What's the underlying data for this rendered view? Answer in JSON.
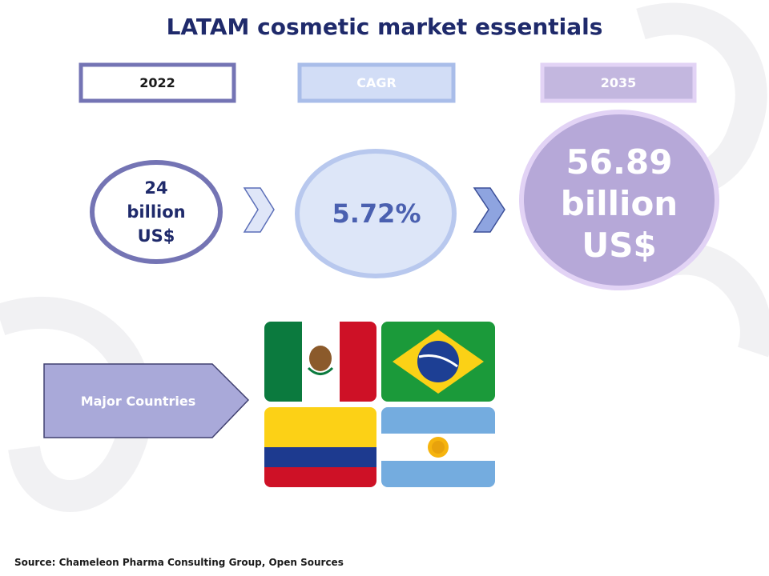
{
  "title": "LATAM cosmetic market essentials",
  "headers": [
    "2022",
    "CAGR",
    "2035"
  ],
  "values": [
    "24 billion US$",
    "5.72%",
    "56.89 billion US$"
  ],
  "countries_label": "Major Countries",
  "source": "Source: Chameleon Pharma Consulting Group, Open Sources"
}
